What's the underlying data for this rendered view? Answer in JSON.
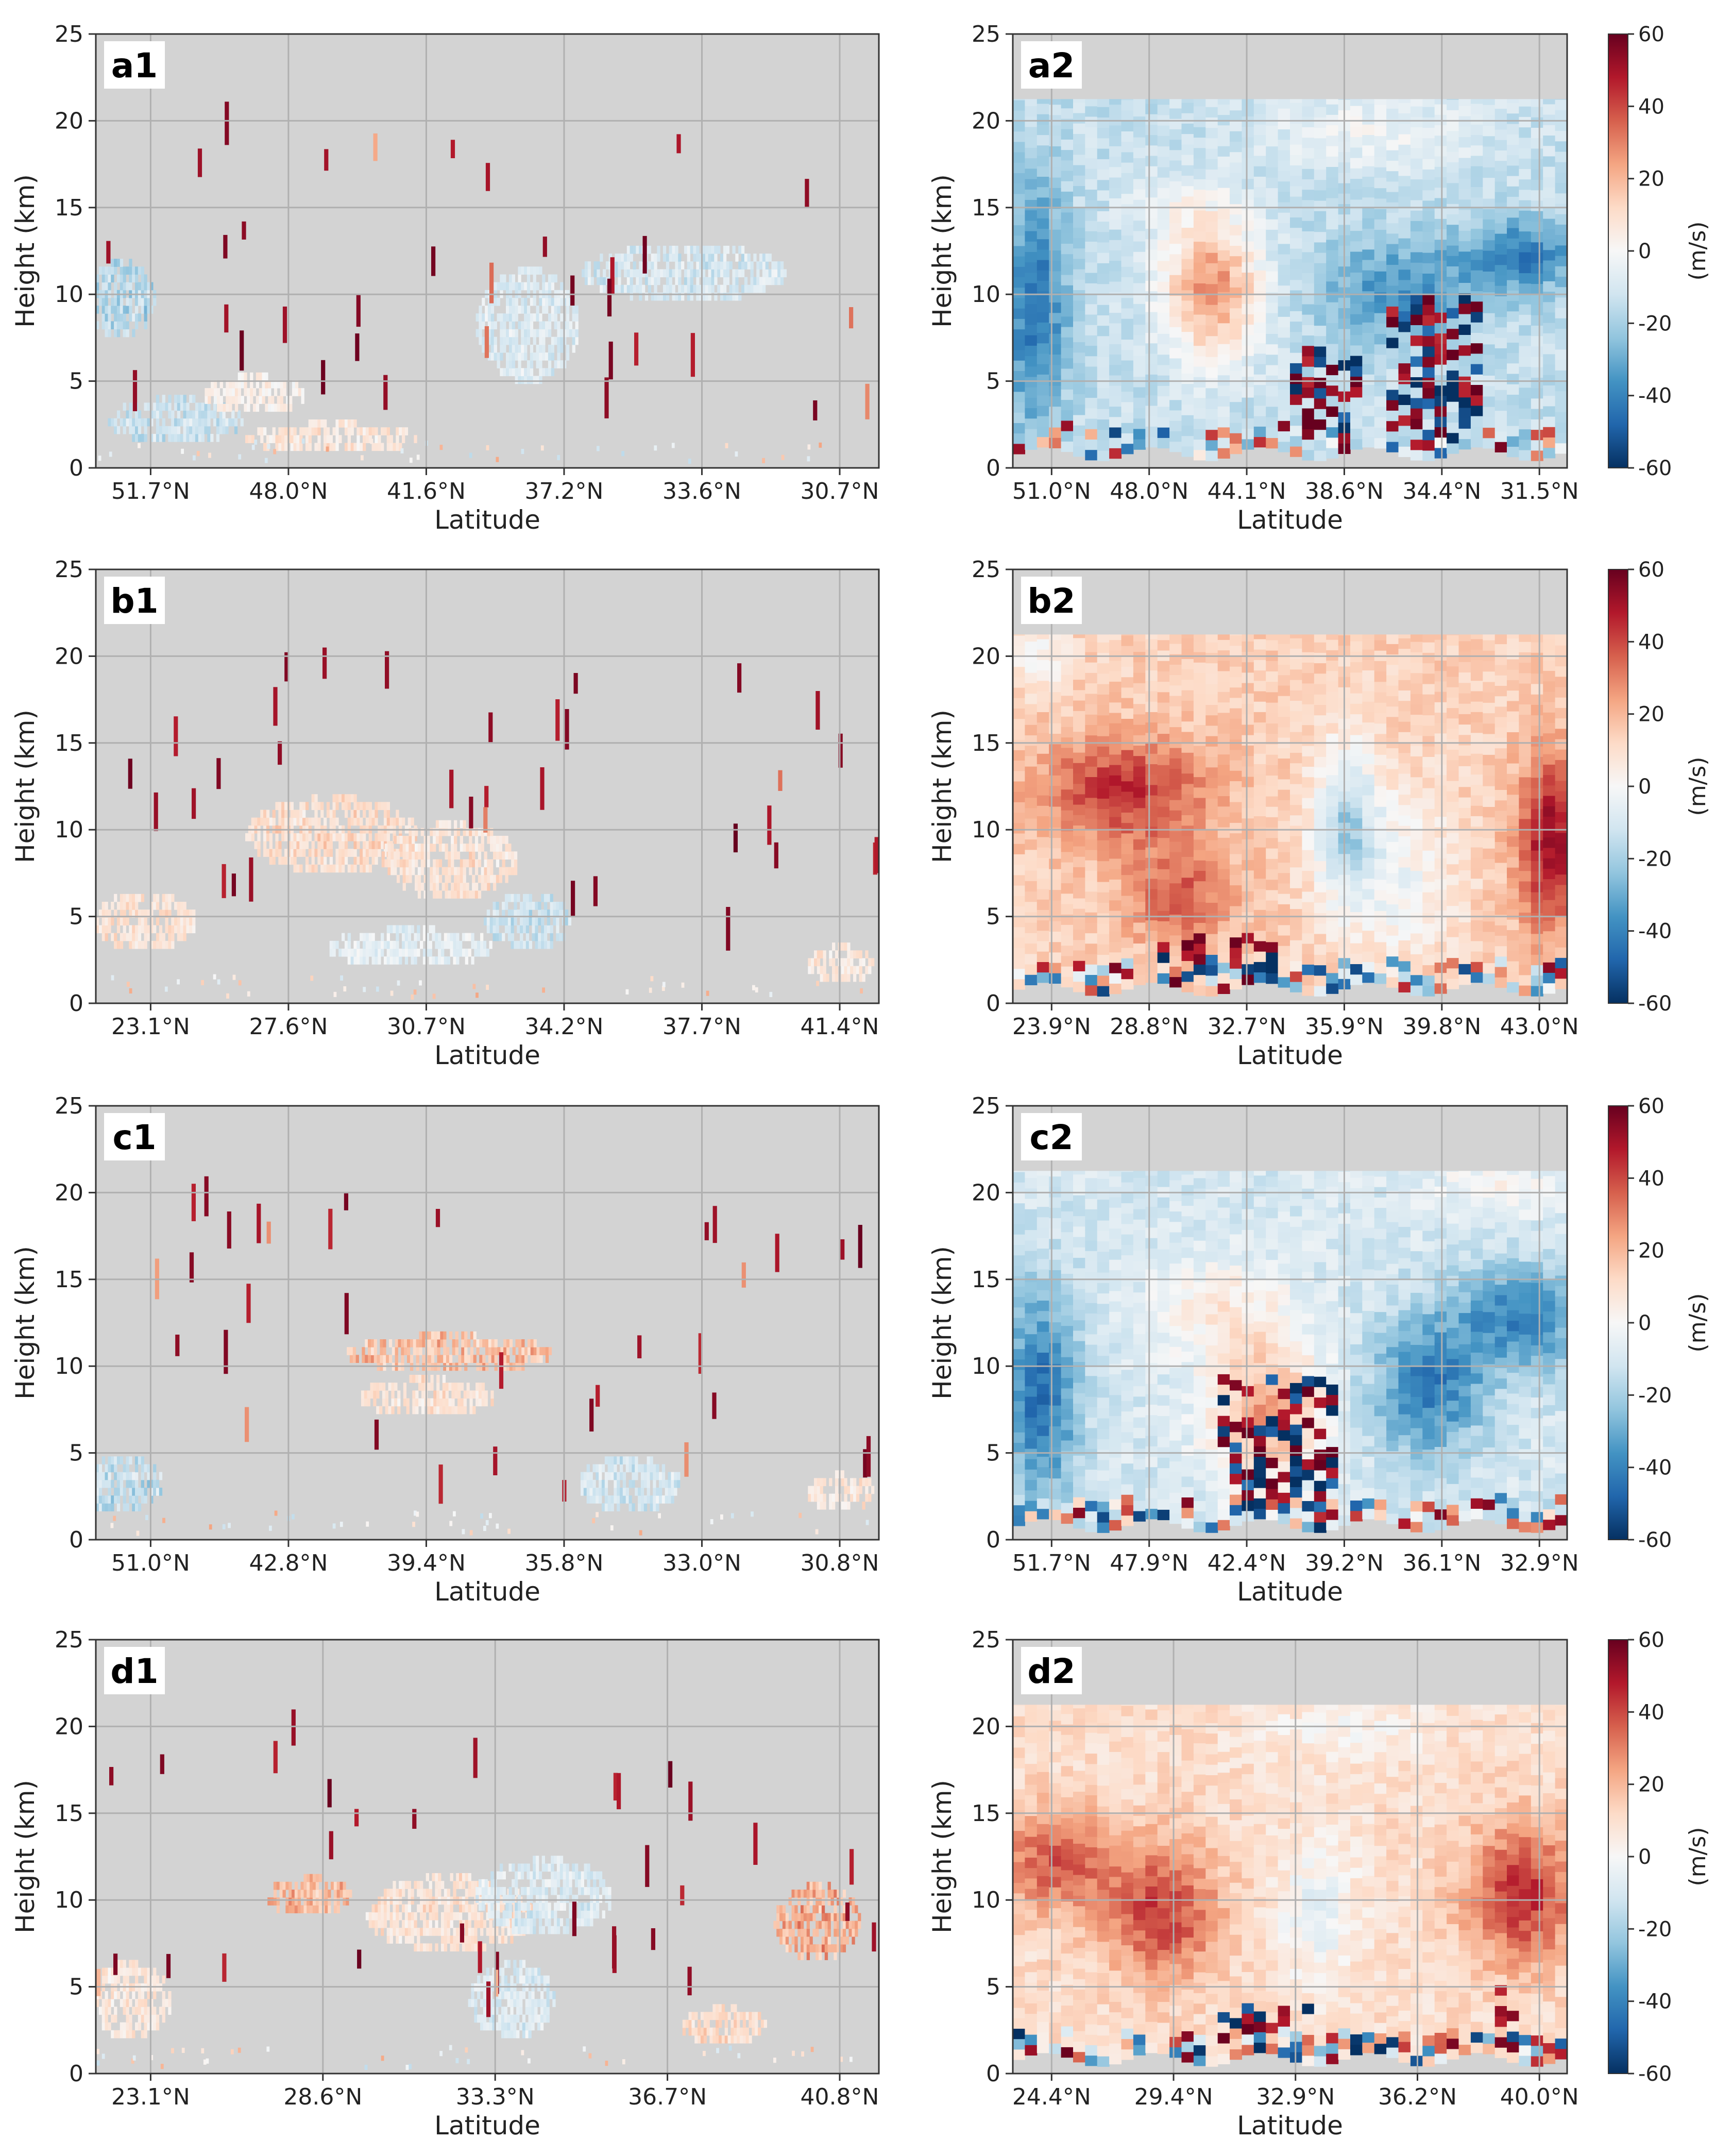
{
  "figure": {
    "xlabel": "Latitude",
    "ylabel": "Height (km)",
    "colorbar_label": "(m/s)",
    "colorbar_ticks": [
      60,
      40,
      20,
      0,
      -20,
      -40,
      -60
    ],
    "colorbar_range": [
      -60,
      60
    ],
    "cmap": [
      "#053061",
      "#2166ac",
      "#4393c3",
      "#92c5de",
      "#d1e5f0",
      "#f7f7f7",
      "#fddbc7",
      "#f4a582",
      "#d6604d",
      "#b2182b",
      "#67001f"
    ],
    "missing_color": "#d3d3d3",
    "grid_color": "#b0b0b0"
  },
  "chart_data": [
    {
      "type": "heatmap",
      "panel": "a1",
      "title": "a1",
      "xlabel": "Latitude",
      "ylabel": "Height (km)",
      "yticks": [
        "0",
        "5",
        "10",
        "15",
        "20",
        "25"
      ],
      "ylim": [
        0,
        25
      ],
      "xticks": [
        "51.7°N",
        "48.0°N",
        "41.6°N",
        "37.2°N",
        "33.6°N",
        "30.7°N"
      ],
      "pattern": "sparse",
      "blobs": [
        [
          0.03,
          9.5,
          0.04,
          2.0,
          -25
        ],
        [
          0.1,
          2.5,
          0.08,
          1.2,
          -18
        ],
        [
          0.2,
          4.0,
          0.06,
          1.0,
          5
        ],
        [
          0.55,
          8.0,
          0.06,
          3.0,
          -12
        ],
        [
          0.75,
          11.0,
          0.12,
          1.5,
          -14
        ],
        [
          0.3,
          1.5,
          0.1,
          0.8,
          10
        ]
      ]
    },
    {
      "type": "heatmap",
      "panel": "a2",
      "title": "a2",
      "xlabel": "Latitude",
      "ylabel": "Height (km)",
      "yticks": [
        "0",
        "5",
        "10",
        "15",
        "20",
        "25"
      ],
      "ylim": [
        0,
        25
      ],
      "xticks": [
        "51.0°N",
        "48.0°N",
        "44.1°N",
        "38.6°N",
        "34.4°N",
        "31.5°N"
      ],
      "pattern": "dense",
      "colorbar": true,
      "base": -14,
      "blobs": [
        [
          0.04,
          9.0,
          0.06,
          7.0,
          -30
        ],
        [
          0.36,
          10.0,
          0.09,
          4.0,
          42
        ],
        [
          0.7,
          10.0,
          0.15,
          3.0,
          -22
        ],
        [
          0.92,
          12.0,
          0.1,
          2.0,
          -28
        ],
        [
          0.65,
          19.0,
          0.2,
          2.0,
          12
        ],
        [
          0.3,
          15.0,
          0.1,
          2.0,
          8
        ]
      ],
      "noisy": [
        [
          0.5,
          0.62,
          0.5,
          6.5
        ],
        [
          0.68,
          0.84,
          0.5,
          9.5
        ]
      ]
    },
    {
      "type": "heatmap",
      "panel": "b1",
      "title": "b1",
      "xlabel": "Latitude",
      "ylabel": "Height (km)",
      "yticks": [
        "0",
        "5",
        "10",
        "15",
        "20",
        "25"
      ],
      "ylim": [
        0,
        25
      ],
      "xticks": [
        "23.1°N",
        "27.6°N",
        "30.7°N",
        "34.2°N",
        "37.7°N",
        "41.4°N"
      ],
      "pattern": "sparse",
      "blobs": [
        [
          0.06,
          4.5,
          0.06,
          1.5,
          12
        ],
        [
          0.3,
          9.5,
          0.1,
          2.0,
          15
        ],
        [
          0.45,
          8.0,
          0.08,
          2.0,
          12
        ],
        [
          0.55,
          4.5,
          0.05,
          1.5,
          -18
        ],
        [
          0.4,
          3.0,
          0.1,
          1.0,
          -8
        ],
        [
          0.95,
          2.0,
          0.04,
          1.0,
          10
        ]
      ]
    },
    {
      "type": "heatmap",
      "panel": "b2",
      "title": "b2",
      "xlabel": "Latitude",
      "ylabel": "Height (km)",
      "yticks": [
        "0",
        "5",
        "10",
        "15",
        "20",
        "25"
      ],
      "ylim": [
        0,
        25
      ],
      "xticks": [
        "23.9°N",
        "28.8°N",
        "32.7°N",
        "35.9°N",
        "39.8°N",
        "43.0°N"
      ],
      "pattern": "dense",
      "colorbar": true,
      "base": 14,
      "blobs": [
        [
          0.2,
          12.0,
          0.15,
          3.0,
          30
        ],
        [
          0.6,
          10.0,
          0.06,
          4.5,
          -32
        ],
        [
          0.7,
          7.0,
          0.1,
          5.0,
          -15
        ],
        [
          0.97,
          9.0,
          0.06,
          5.0,
          38
        ],
        [
          0.3,
          6.0,
          0.1,
          3.0,
          22
        ],
        [
          0.05,
          19.5,
          0.05,
          2.0,
          -12
        ]
      ],
      "noisy": [
        [
          0.27,
          0.47,
          0.3,
          3.5
        ]
      ]
    },
    {
      "type": "heatmap",
      "panel": "c1",
      "title": "c1",
      "xlabel": "Latitude",
      "ylabel": "Height (km)",
      "yticks": [
        "0",
        "5",
        "10",
        "15",
        "20",
        "25"
      ],
      "ylim": [
        0,
        25
      ],
      "xticks": [
        "51.0°N",
        "42.8°N",
        "39.4°N",
        "35.8°N",
        "33.0°N",
        "30.8°N"
      ],
      "pattern": "sparse",
      "blobs": [
        [
          0.03,
          3.0,
          0.05,
          1.5,
          -22
        ],
        [
          0.45,
          10.5,
          0.12,
          1.0,
          25
        ],
        [
          0.42,
          8.0,
          0.08,
          1.0,
          12
        ],
        [
          0.68,
          3.0,
          0.06,
          1.5,
          -15
        ],
        [
          0.95,
          2.5,
          0.04,
          1.0,
          10
        ]
      ]
    },
    {
      "type": "heatmap",
      "panel": "c2",
      "title": "c2",
      "xlabel": "Latitude",
      "ylabel": "Height (km)",
      "yticks": [
        "0",
        "5",
        "10",
        "15",
        "20",
        "25"
      ],
      "ylim": [
        0,
        25
      ],
      "xticks": [
        "51.7°N",
        "47.9°N",
        "42.4°N",
        "39.2°N",
        "36.1°N",
        "32.9°N"
      ],
      "pattern": "dense",
      "colorbar": true,
      "base": -10,
      "blobs": [
        [
          0.05,
          8.0,
          0.07,
          6.0,
          -35
        ],
        [
          0.46,
          7.0,
          0.1,
          4.0,
          35
        ],
        [
          0.75,
          8.5,
          0.1,
          4.0,
          -32
        ],
        [
          0.92,
          12.5,
          0.12,
          3.0,
          -30
        ],
        [
          0.88,
          20.0,
          0.12,
          1.5,
          12
        ],
        [
          0.38,
          13.0,
          0.12,
          3.0,
          15
        ]
      ],
      "noisy": [
        [
          0.38,
          0.58,
          0.4,
          9.0
        ]
      ]
    },
    {
      "type": "heatmap",
      "panel": "d1",
      "title": "d1",
      "xlabel": "Latitude",
      "ylabel": "Height (km)",
      "yticks": [
        "0",
        "5",
        "10",
        "15",
        "20",
        "25"
      ],
      "ylim": [
        0,
        25
      ],
      "xticks": [
        "23.1°N",
        "28.6°N",
        "33.3°N",
        "36.7°N",
        "40.8°N"
      ],
      "pattern": "sparse",
      "blobs": [
        [
          0.04,
          4.0,
          0.05,
          2.0,
          10
        ],
        [
          0.27,
          10.0,
          0.05,
          1.0,
          28
        ],
        [
          0.45,
          9.0,
          0.1,
          2.0,
          12
        ],
        [
          0.57,
          10.0,
          0.08,
          2.0,
          -12
        ],
        [
          0.53,
          4.0,
          0.05,
          2.0,
          -12
        ],
        [
          0.92,
          8.5,
          0.05,
          2.0,
          32
        ],
        [
          0.8,
          2.5,
          0.05,
          1.0,
          15
        ]
      ]
    },
    {
      "type": "heatmap",
      "panel": "d2",
      "title": "d2",
      "xlabel": "Latitude",
      "ylabel": "Height (km)",
      "yticks": [
        "0",
        "5",
        "10",
        "15",
        "20",
        "25"
      ],
      "ylim": [
        0,
        25
      ],
      "xticks": [
        "24.4°N",
        "29.4°N",
        "32.9°N",
        "36.2°N",
        "40.0°N"
      ],
      "pattern": "dense",
      "colorbar": true,
      "base": 10,
      "blobs": [
        [
          0.08,
          12.0,
          0.1,
          3.0,
          28
        ],
        [
          0.27,
          9.0,
          0.1,
          4.0,
          32
        ],
        [
          0.92,
          10.0,
          0.1,
          4.0,
          35
        ],
        [
          0.55,
          9.0,
          0.07,
          4.0,
          -15
        ],
        [
          0.6,
          19.5,
          0.15,
          2.0,
          -8
        ]
      ],
      "noisy": [
        [
          0.37,
          0.57,
          0.2,
          3.5
        ],
        [
          0.86,
          0.92,
          0.2,
          5.0
        ]
      ]
    }
  ]
}
